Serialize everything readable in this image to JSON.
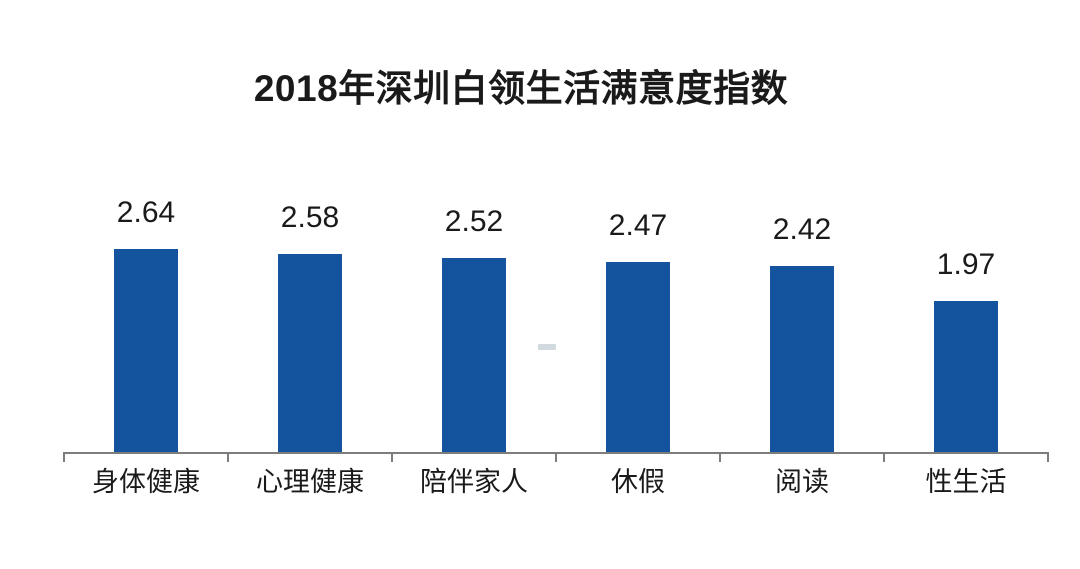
{
  "chart_data": {
    "type": "bar",
    "title": "2018年深圳白领生活满意度指数",
    "categories": [
      "身体健康",
      "心理健康",
      "陪伴家人",
      "休假",
      "阅读",
      "性生活"
    ],
    "values": [
      2.64,
      2.58,
      2.52,
      2.47,
      2.42,
      1.97
    ],
    "value_labels": [
      "2.64",
      "2.58",
      "2.52",
      "2.47",
      "2.42",
      "1.97"
    ],
    "xlabel": "",
    "ylabel": "",
    "ylim": [
      0,
      2.94
    ],
    "grid": false,
    "legend": false,
    "bar_color": "#14539e",
    "axis_color": "#7d7d7d",
    "text_color": "#1a1a1a",
    "background_color": "#ffffff"
  }
}
